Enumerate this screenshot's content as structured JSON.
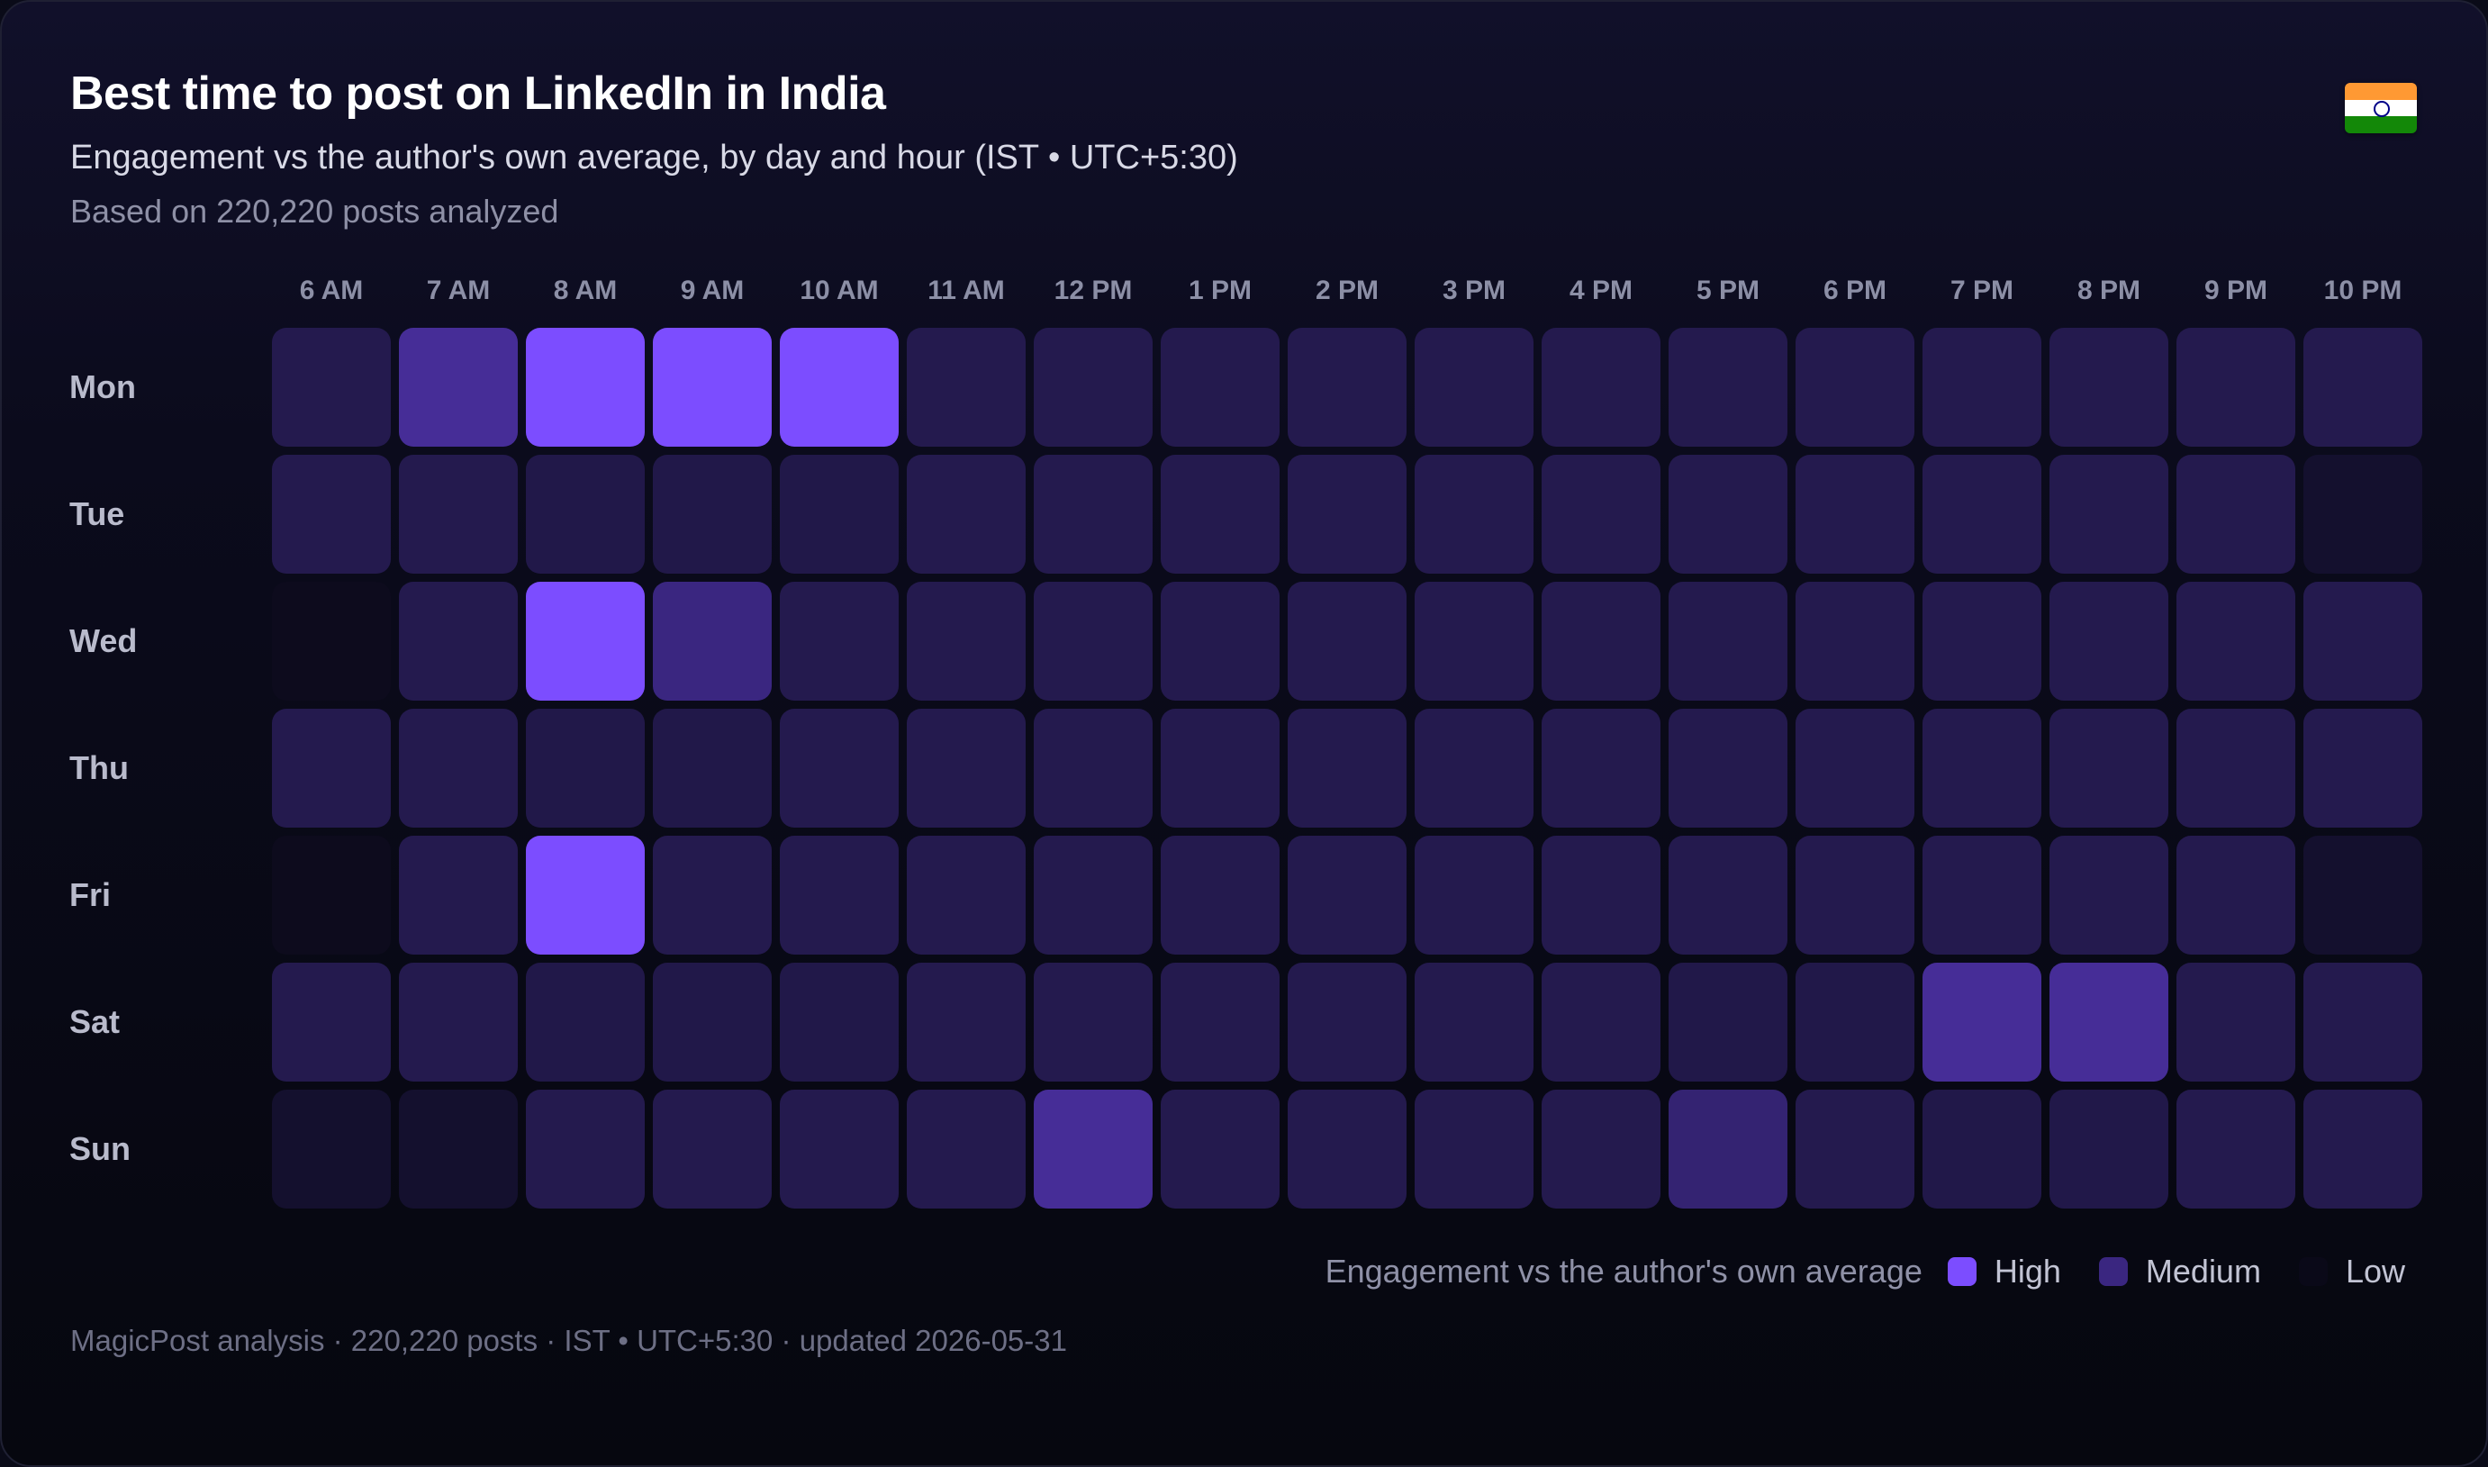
{
  "header": {
    "title": "Best time to post on LinkedIn in India",
    "subtitle": "Engagement vs the author's own average, by day and hour (IST • UTC+5:30)",
    "posts_note": "Based on 220,220 posts analyzed",
    "flag_icon": "india-flag-icon"
  },
  "chart_data": {
    "type": "heatmap",
    "title": "Best time to post on LinkedIn in India",
    "subtitle": "Engagement vs the author's own average, by day and hour (IST • UTC+5:30)",
    "x": [
      "6 AM",
      "7 AM",
      "8 AM",
      "9 AM",
      "10 AM",
      "11 AM",
      "12 PM",
      "1 PM",
      "2 PM",
      "3 PM",
      "4 PM",
      "5 PM",
      "6 PM",
      "7 PM",
      "8 PM",
      "9 PM",
      "10 PM"
    ],
    "y": [
      "Mon",
      "Tue",
      "Wed",
      "Thu",
      "Fri",
      "Sat",
      "Sun"
    ],
    "scale": {
      "low": "#0a0918",
      "medium": "#3a2680",
      "high": "#7c4dff"
    },
    "values": [
      [
        0.2,
        0.55,
        1.0,
        1.0,
        1.0,
        0.2,
        0.2,
        0.2,
        0.2,
        0.2,
        0.2,
        0.2,
        0.2,
        0.2,
        0.2,
        0.2,
        0.2
      ],
      [
        0.2,
        0.2,
        0.18,
        0.18,
        0.18,
        0.2,
        0.2,
        0.2,
        0.2,
        0.2,
        0.2,
        0.2,
        0.2,
        0.2,
        0.2,
        0.2,
        0.08
      ],
      [
        0.02,
        0.2,
        1.0,
        0.45,
        0.2,
        0.2,
        0.2,
        0.2,
        0.2,
        0.2,
        0.2,
        0.2,
        0.2,
        0.2,
        0.2,
        0.2,
        0.2
      ],
      [
        0.2,
        0.2,
        0.18,
        0.18,
        0.2,
        0.2,
        0.2,
        0.2,
        0.2,
        0.2,
        0.2,
        0.2,
        0.2,
        0.2,
        0.2,
        0.2,
        0.2
      ],
      [
        0.02,
        0.2,
        1.0,
        0.2,
        0.2,
        0.2,
        0.2,
        0.2,
        0.2,
        0.2,
        0.2,
        0.2,
        0.2,
        0.2,
        0.2,
        0.2,
        0.08
      ],
      [
        0.2,
        0.2,
        0.18,
        0.18,
        0.18,
        0.2,
        0.2,
        0.2,
        0.2,
        0.2,
        0.2,
        0.18,
        0.18,
        0.55,
        0.55,
        0.2,
        0.2
      ],
      [
        0.08,
        0.08,
        0.2,
        0.2,
        0.2,
        0.2,
        0.55,
        0.2,
        0.2,
        0.2,
        0.2,
        0.38,
        0.2,
        0.18,
        0.18,
        0.2,
        0.2
      ]
    ],
    "legend": {
      "title": "Engagement vs the author's own average",
      "items": [
        {
          "label": "High",
          "color": "#7c4dff"
        },
        {
          "label": "Medium",
          "color": "#3a2680"
        },
        {
          "label": "Low",
          "color": "#0a0918"
        }
      ],
      "placement": "bottom-right"
    }
  },
  "footer": {
    "text": "MagicPost analysis · 220,220 posts · IST • UTC+5:30 · updated 2026-05-31"
  }
}
